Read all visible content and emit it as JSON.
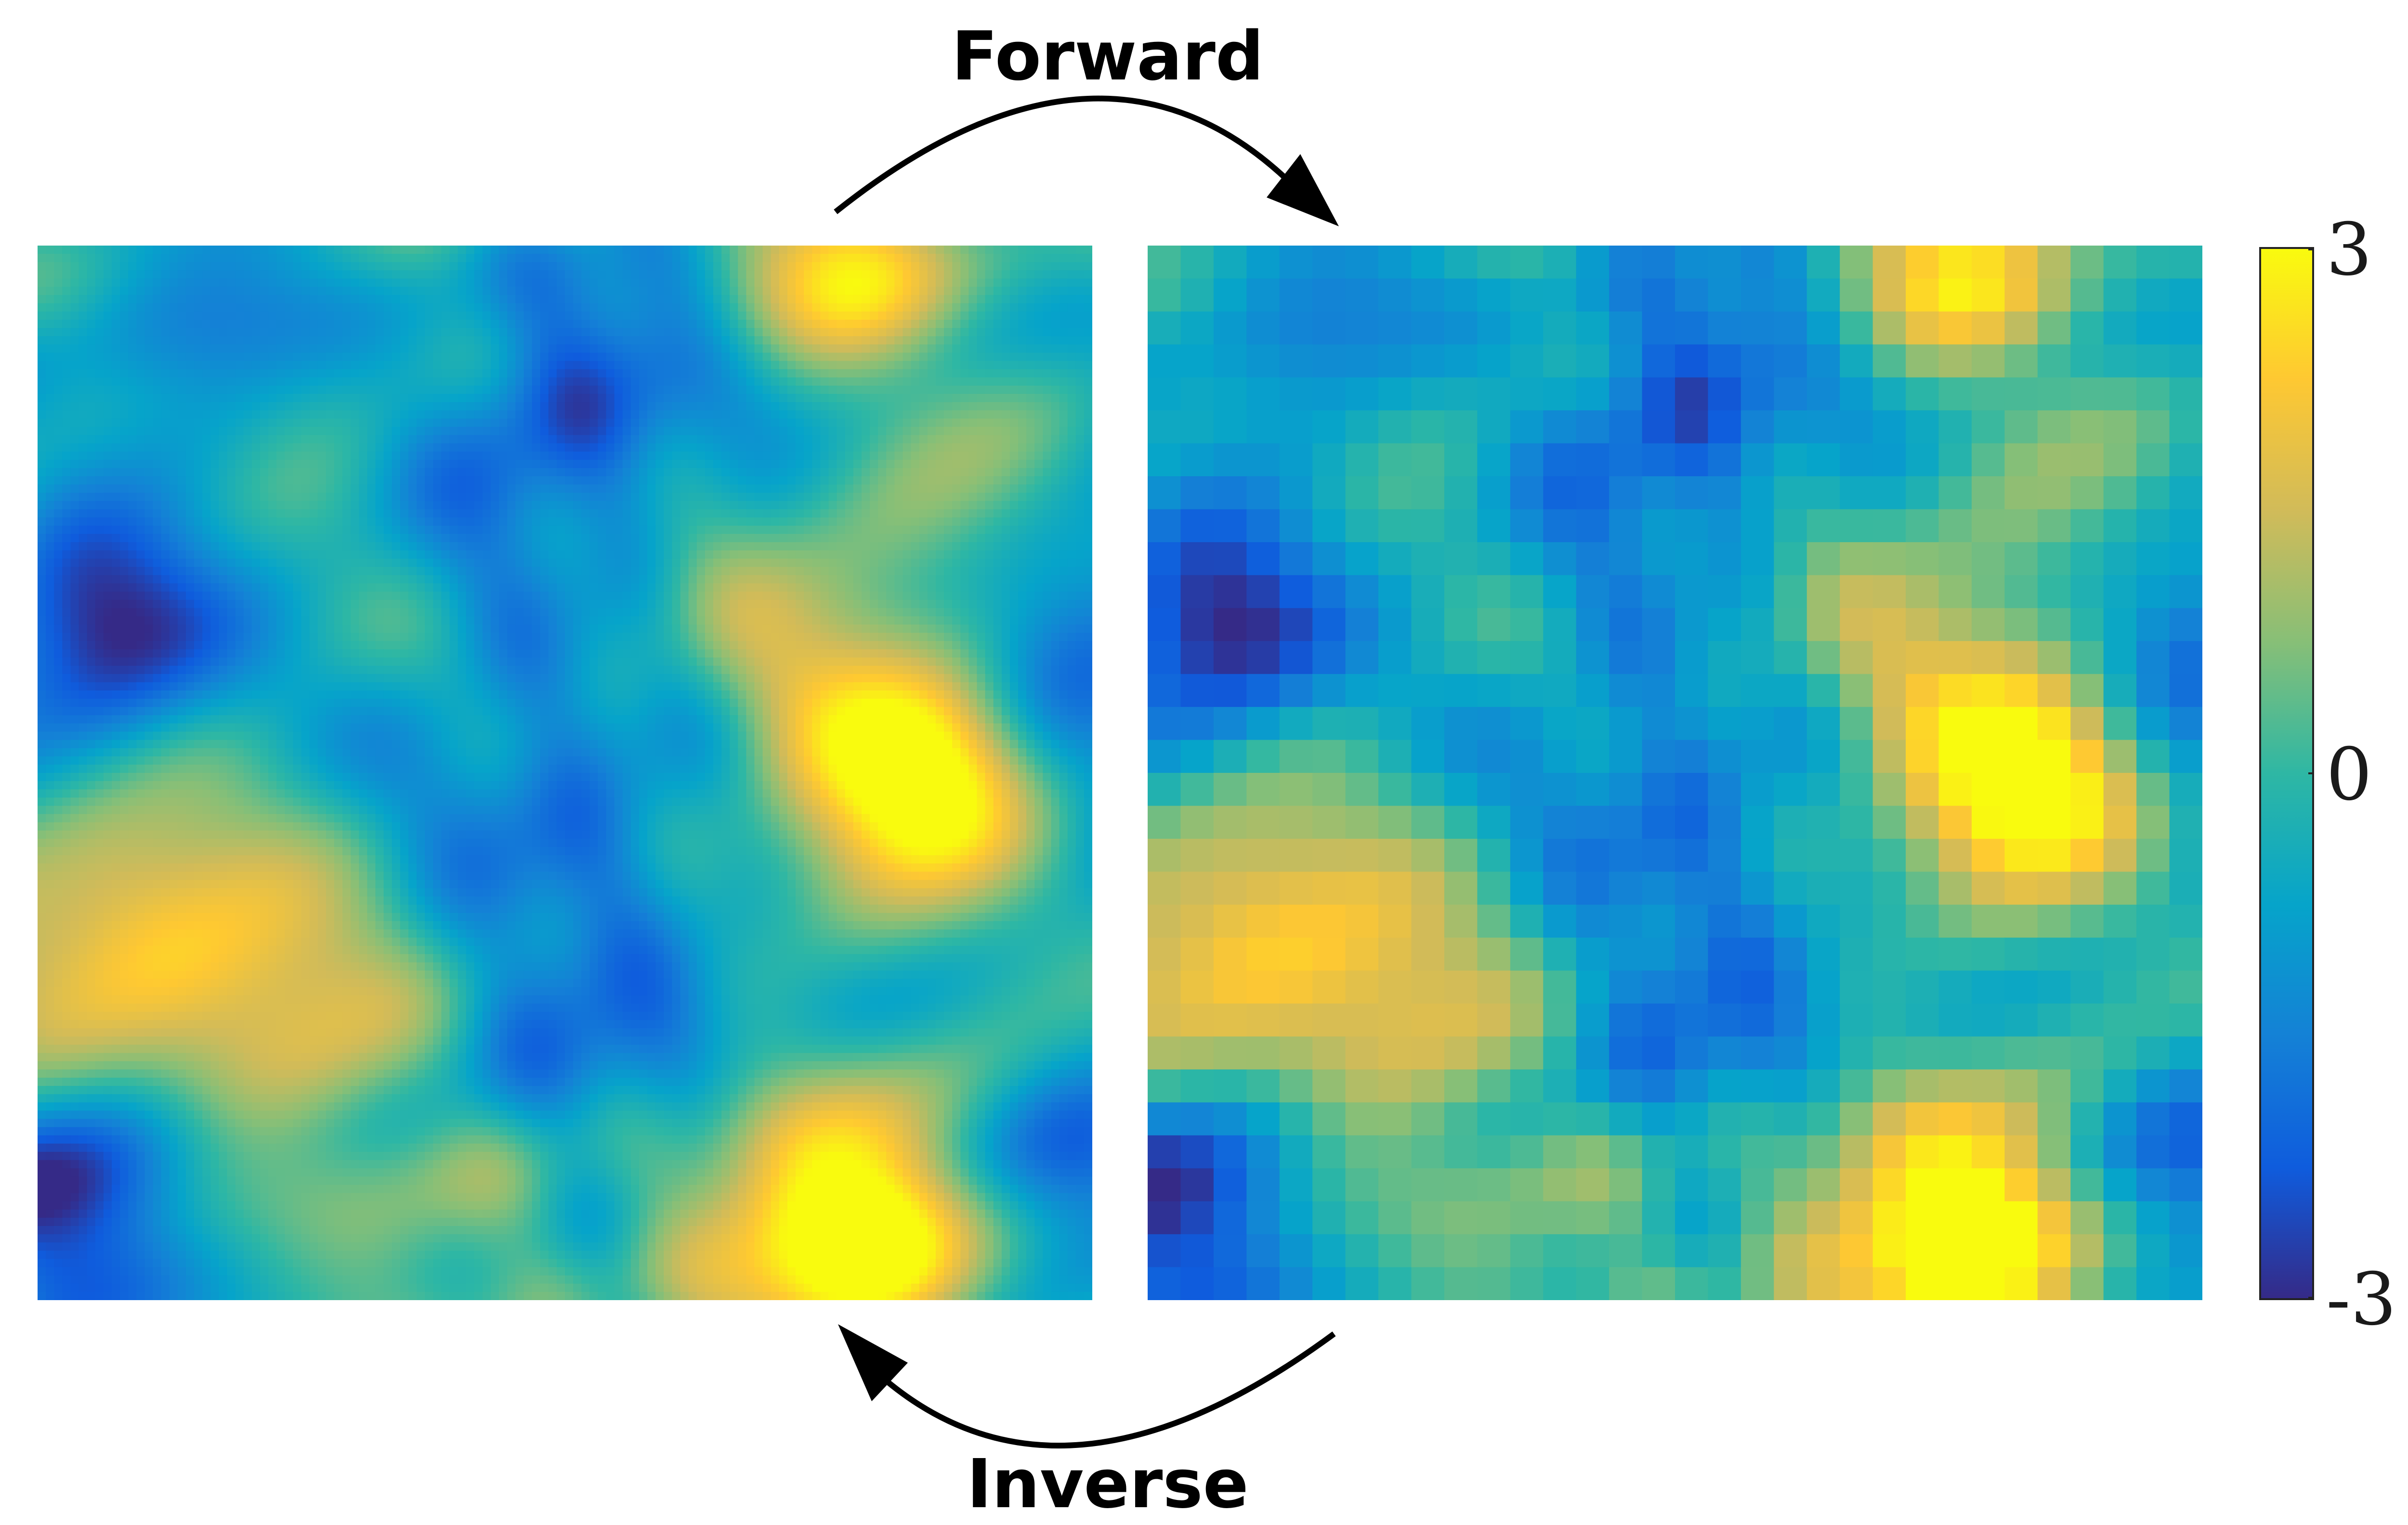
{
  "labels": {
    "forward": "Forward",
    "inverse": "Inverse"
  },
  "colorbar": {
    "min": -3,
    "max": 3,
    "ticks": [
      {
        "value": 3,
        "label": "3"
      },
      {
        "value": 0,
        "label": "0"
      },
      {
        "value": -3,
        "label": "-3"
      }
    ],
    "colormap": "parula",
    "stops": [
      "#352a87",
      "#0f5cdd",
      "#1481d6",
      "#06a4ca",
      "#2eb7a4",
      "#87bf77",
      "#d1bb59",
      "#fec832",
      "#f9fb0e"
    ]
  },
  "panels": [
    {
      "id": "high-resolution-field",
      "grid": 128
    },
    {
      "id": "coarse-grained-field",
      "grid": 32
    }
  ]
}
